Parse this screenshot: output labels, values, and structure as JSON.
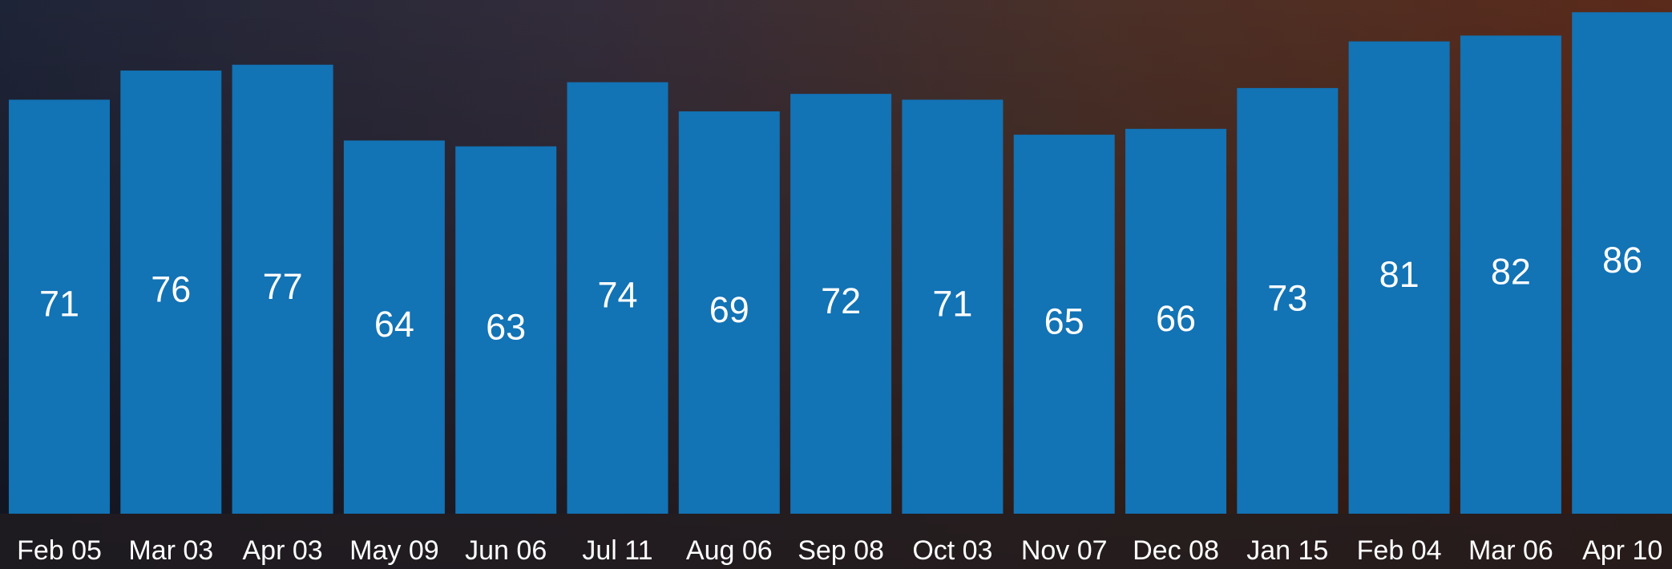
{
  "chart_data": {
    "type": "bar",
    "categories": [
      "Feb 05",
      "Mar 03",
      "Apr 03",
      "May 09",
      "Jun 06",
      "Jul 11",
      "Aug 06",
      "Sep 08",
      "Oct 03",
      "Nov 07",
      "Dec 08",
      "Jan 15",
      "Feb 04",
      "Mar 06",
      "Apr 10"
    ],
    "values": [
      71,
      76,
      77,
      64,
      63,
      74,
      69,
      72,
      71,
      65,
      66,
      73,
      81,
      82,
      86
    ],
    "color": "#1273b5",
    "ylim": [
      0,
      87
    ]
  }
}
